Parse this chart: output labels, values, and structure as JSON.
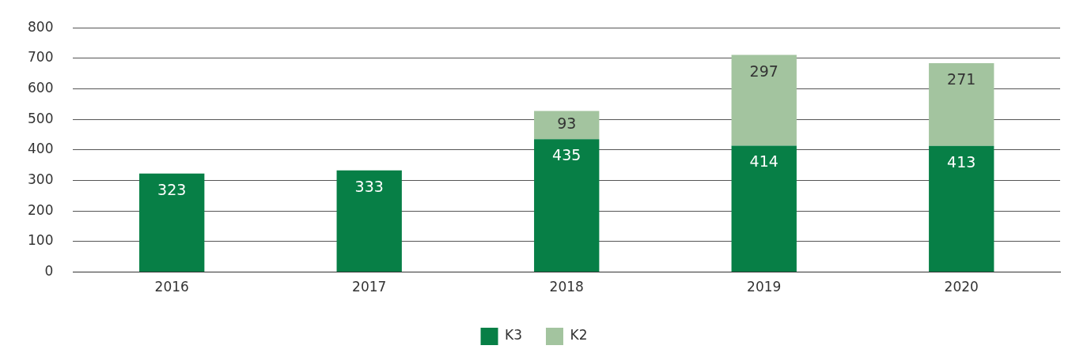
{
  "chart_data": {
    "type": "bar",
    "stacked": true,
    "categories": [
      "2016",
      "2017",
      "2018",
      "2019",
      "2020"
    ],
    "series": [
      {
        "name": "K3",
        "color": "#077f46",
        "values": [
          323,
          333,
          435,
          414,
          413
        ]
      },
      {
        "name": "K2",
        "color": "#a3c49f",
        "values": [
          null,
          null,
          93,
          297,
          271
        ]
      }
    ],
    "ylim": [
      0,
      800
    ],
    "yticks": [
      0,
      100,
      200,
      300,
      400,
      500,
      600,
      700,
      800
    ],
    "grid": "y",
    "legend": "bottom",
    "data_labels": true
  }
}
